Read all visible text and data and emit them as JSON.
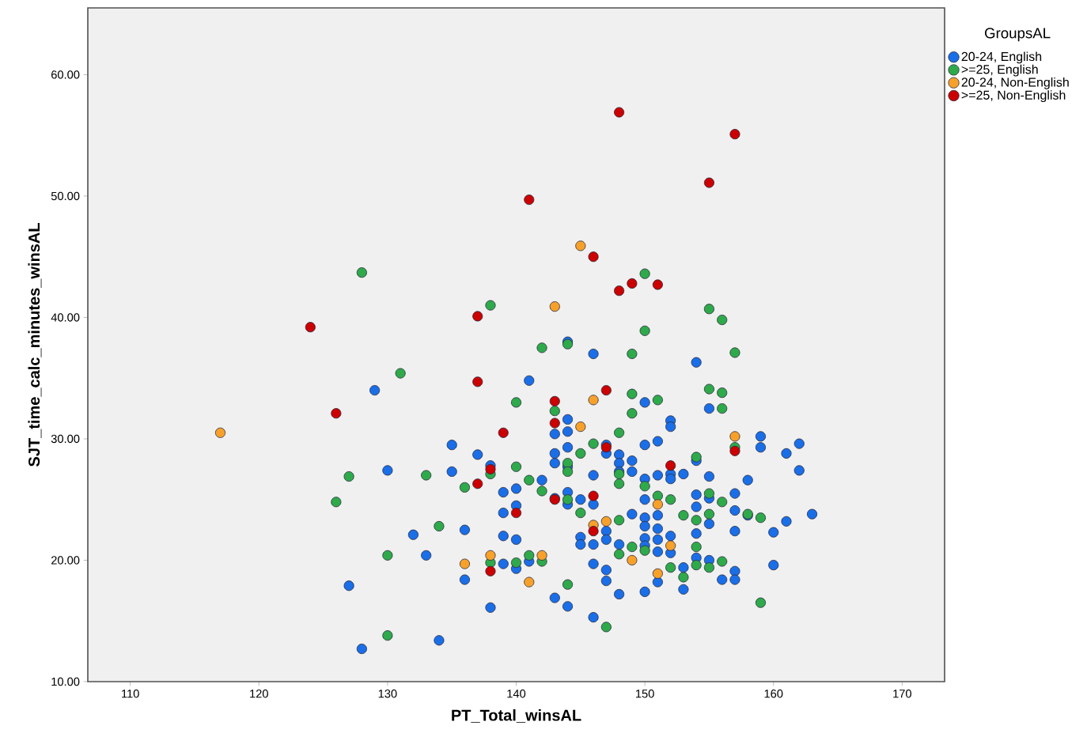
{
  "chart_data": {
    "type": "scatter",
    "xlabel": "PT_Total_winsAL",
    "ylabel": "SJT_time_calc_minutes_winsAL",
    "legend_title": "GroupsAL",
    "legend": "right",
    "marker": "circle",
    "xlim": [
      106.7,
      173.3
    ],
    "ylim": [
      10,
      65.5
    ],
    "xticks": [
      110,
      120,
      130,
      140,
      150,
      160,
      170
    ],
    "yticks": [
      {
        "value": 10,
        "label": "10.00"
      },
      {
        "value": 20,
        "label": "20.00"
      },
      {
        "value": 30,
        "label": "30.00"
      },
      {
        "value": 40,
        "label": "40.00"
      },
      {
        "value": 50,
        "label": "50.00"
      },
      {
        "value": 60,
        "label": "60.00"
      }
    ],
    "series": [
      {
        "name": "20-24, English",
        "color": "#1a6fe8",
        "x": [
          129,
          130,
          127,
          128,
          134,
          132,
          133,
          135,
          135,
          136,
          136,
          137,
          138,
          138,
          139,
          139,
          139,
          139,
          140,
          140,
          140,
          140,
          141,
          141,
          142,
          143,
          143,
          143,
          143,
          143,
          144,
          144,
          144,
          144,
          144,
          144,
          144,
          144,
          145,
          145,
          145,
          146,
          146,
          146,
          146,
          146,
          146,
          147,
          147,
          147,
          147,
          147,
          147,
          148,
          148,
          148,
          148,
          148,
          149,
          149,
          149,
          150,
          150,
          150,
          150,
          150,
          150,
          150,
          150,
          150,
          151,
          151,
          151,
          151,
          151,
          151,
          151,
          152,
          152,
          152,
          152,
          152,
          152,
          153,
          153,
          153,
          154,
          154,
          154,
          154,
          154,
          154,
          155,
          155,
          155,
          155,
          155,
          156,
          157,
          157,
          157,
          157,
          157,
          158,
          158,
          159,
          159,
          160,
          160,
          161,
          161,
          162,
          162,
          163
        ],
        "values": [
          34.0,
          27.4,
          17.9,
          12.7,
          13.4,
          22.1,
          20.4,
          29.5,
          27.3,
          22.5,
          18.4,
          28.7,
          27.8,
          16.1,
          25.6,
          23.9,
          22.0,
          19.7,
          24.5,
          21.7,
          19.3,
          25.9,
          34.8,
          19.9,
          26.6,
          30.4,
          28.8,
          28.0,
          25.1,
          16.9,
          38.0,
          31.6,
          30.6,
          29.3,
          27.7,
          25.6,
          24.6,
          16.2,
          21.9,
          21.3,
          25.0,
          37.0,
          27.0,
          24.6,
          21.3,
          19.7,
          15.3,
          29.5,
          28.8,
          22.4,
          21.7,
          19.2,
          18.3,
          28.7,
          28.0,
          27.3,
          21.3,
          17.2,
          28.2,
          27.3,
          23.8,
          33.0,
          29.5,
          26.7,
          25.0,
          23.5,
          22.8,
          21.8,
          21.2,
          17.4,
          29.8,
          27.0,
          23.7,
          22.6,
          21.7,
          20.7,
          18.2,
          31.5,
          31.0,
          27.1,
          26.7,
          22.0,
          20.6,
          27.1,
          19.4,
          17.6,
          36.3,
          28.2,
          25.4,
          24.4,
          22.2,
          20.2,
          32.5,
          26.9,
          25.1,
          23.0,
          20.0,
          18.4,
          25.5,
          24.1,
          22.4,
          19.1,
          18.4,
          26.6,
          23.7,
          30.2,
          29.3,
          22.3,
          19.6,
          28.8,
          23.2,
          29.6,
          27.4,
          23.8
        ]
      },
      {
        "name": ">=25, English",
        "color": "#2eaa4a",
        "x": [
          128,
          138,
          131,
          144,
          142,
          140,
          150,
          150,
          149,
          155,
          156,
          157,
          149,
          149,
          151,
          155,
          156,
          156,
          143,
          148,
          146,
          145,
          126,
          127,
          133,
          134,
          130,
          130,
          136,
          138,
          140,
          141,
          142,
          144,
          144,
          144,
          144,
          145,
          141,
          140,
          142,
          138,
          147,
          148,
          148,
          148,
          148,
          149,
          150,
          150,
          151,
          152,
          152,
          153,
          153,
          154,
          154,
          154,
          154,
          155,
          155,
          155,
          156,
          156,
          157,
          159,
          159,
          158
        ],
        "values": [
          43.7,
          41.0,
          35.4,
          37.8,
          37.5,
          33.0,
          43.6,
          38.9,
          37.0,
          40.7,
          39.8,
          37.1,
          33.7,
          32.1,
          33.2,
          34.1,
          33.8,
          32.5,
          32.3,
          30.5,
          29.6,
          28.8,
          24.8,
          26.9,
          27.0,
          22.8,
          20.4,
          13.8,
          26.0,
          27.1,
          27.7,
          26.6,
          25.7,
          28.0,
          27.3,
          25.0,
          18.0,
          23.9,
          20.4,
          19.8,
          19.9,
          19.8,
          14.5,
          27.1,
          26.3,
          23.3,
          20.5,
          21.1,
          26.1,
          20.8,
          25.3,
          25.0,
          19.4,
          23.7,
          18.6,
          28.5,
          23.3,
          21.1,
          19.6,
          25.5,
          23.8,
          19.4,
          24.8,
          19.9,
          29.3,
          23.5,
          16.5,
          23.8
        ]
      },
      {
        "name": "20-24, Non-English",
        "color": "#f7a12a",
        "x": [
          117,
          145,
          143,
          146,
          145,
          157,
          138,
          136,
          141,
          142,
          146,
          147,
          149,
          151,
          151,
          152
        ],
        "values": [
          30.5,
          45.9,
          40.9,
          33.2,
          31.0,
          30.2,
          20.4,
          19.7,
          18.2,
          20.4,
          22.9,
          23.2,
          20.0,
          24.6,
          18.9,
          21.2
        ]
      },
      {
        "name": ">=25, Non-English",
        "color": "#cc0000",
        "x": [
          148,
          157,
          155,
          141,
          146,
          149,
          151,
          148,
          124,
          137,
          137,
          147,
          126,
          143,
          139,
          143,
          138,
          137,
          152,
          157,
          140,
          143,
          146,
          147,
          146,
          138
        ],
        "values": [
          56.9,
          55.1,
          51.1,
          49.7,
          45.0,
          42.8,
          42.7,
          42.2,
          39.2,
          40.1,
          34.7,
          34.0,
          32.1,
          33.1,
          30.5,
          31.3,
          27.5,
          26.3,
          27.8,
          29.0,
          23.9,
          25.0,
          25.3,
          29.3,
          22.4,
          19.1
        ]
      }
    ]
  }
}
